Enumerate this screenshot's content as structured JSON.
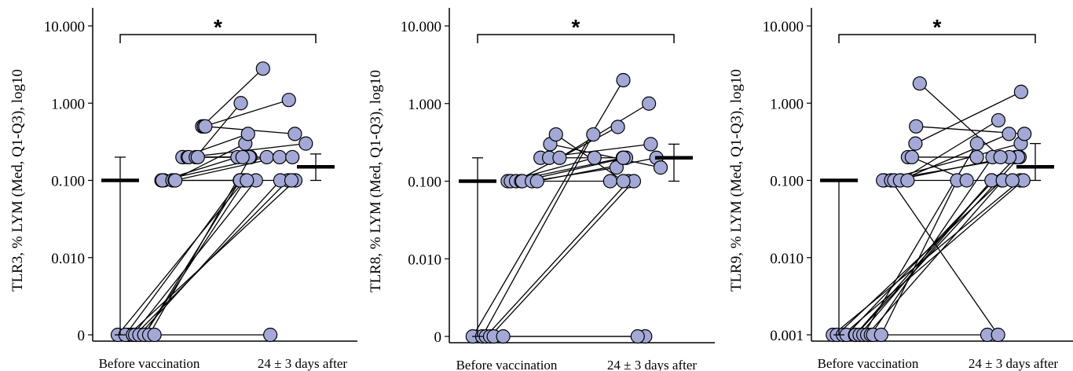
{
  "chart_data": [
    {
      "type": "scatter",
      "ylabel": "TLR3, % LYM (Med, Q1-Q3), log10",
      "categories": [
        "Before vaccination",
        "24 ± 3 days after"
      ],
      "yscale": "log",
      "ylim": [
        0.001,
        10
      ],
      "ytick_values": [
        0.001,
        0.01,
        0.1,
        1,
        10
      ],
      "ytick_labels": [
        "0",
        "0.010",
        "0.100",
        "1.000",
        "10.000"
      ],
      "significance": "*",
      "summary": [
        {
          "median": 0.1,
          "q1": 0.001,
          "q3": 0.2
        },
        {
          "median": 0.15,
          "q1": 0.1,
          "q3": 0.22
        }
      ],
      "pairs": [
        [
          0.001,
          0.1
        ],
        [
          0.001,
          0.1
        ],
        [
          0.001,
          0.1
        ],
        [
          0.001,
          0.1
        ],
        [
          0.001,
          0.1
        ],
        [
          0.001,
          0.1
        ],
        [
          0.001,
          0.1
        ],
        [
          0.001,
          0.1
        ],
        [
          0.001,
          0.2
        ],
        [
          0.001,
          0.001
        ],
        [
          0.1,
          0.2
        ],
        [
          0.1,
          0.1
        ],
        [
          0.1,
          0.2
        ],
        [
          0.1,
          0.3
        ],
        [
          0.1,
          0.2
        ],
        [
          0.1,
          0.1
        ],
        [
          0.2,
          0.2
        ],
        [
          0.2,
          0.4
        ],
        [
          0.2,
          0.2
        ],
        [
          0.2,
          0.3
        ],
        [
          0.2,
          1.0
        ],
        [
          0.2,
          0.2
        ],
        [
          0.5,
          2.8
        ],
        [
          0.5,
          1.1
        ],
        [
          0.5,
          0.4
        ]
      ]
    },
    {
      "type": "scatter",
      "ylabel": "TLR8, % LYM (Med, Q1-Q3), log10",
      "categories": [
        "Before vaccination",
        "24 ± 3 days after"
      ],
      "yscale": "log",
      "ylim": [
        0.001,
        10
      ],
      "ytick_values": [
        0.001,
        0.01,
        0.1,
        1,
        10
      ],
      "ytick_labels": [
        "0",
        "0.010",
        "0.100",
        "1.000",
        "10.000"
      ],
      "significance": "*",
      "summary": [
        {
          "median": 0.1,
          "q1": 0.001,
          "q3": 0.2
        },
        {
          "median": 0.2,
          "q1": 0.1,
          "q3": 0.3
        }
      ],
      "pairs": [
        [
          0.001,
          2.0
        ],
        [
          0.001,
          0.4
        ],
        [
          0.001,
          0.1
        ],
        [
          0.001,
          0.1
        ],
        [
          0.001,
          0.001
        ],
        [
          0.001,
          0.001
        ],
        [
          0.1,
          0.2
        ],
        [
          0.1,
          0.2
        ],
        [
          0.1,
          0.5
        ],
        [
          0.1,
          0.1
        ],
        [
          0.1,
          0.2
        ],
        [
          0.1,
          0.15
        ],
        [
          0.1,
          0.2
        ],
        [
          0.2,
          0.3
        ],
        [
          0.2,
          0.2
        ],
        [
          0.3,
          0.15
        ],
        [
          0.4,
          0.1
        ],
        [
          0.2,
          1.0
        ]
      ]
    },
    {
      "type": "scatter",
      "ylabel": "TLR9, % LYM (Med, Q1-Q3), log10",
      "categories": [
        "Before vaccination",
        "24 ± 3 days after"
      ],
      "yscale": "log",
      "ylim": [
        0.001,
        10
      ],
      "ytick_values": [
        0.001,
        0.01,
        0.1,
        1,
        10
      ],
      "ytick_labels": [
        "0.001",
        "0.010",
        "0.100",
        "1.000",
        "10.000"
      ],
      "significance": "*",
      "summary": [
        {
          "median": 0.1,
          "q1": 0.001,
          "q3": 0.1
        },
        {
          "median": 0.15,
          "q1": 0.1,
          "q3": 0.3
        }
      ],
      "pairs": [
        [
          0.001,
          0.1
        ],
        [
          0.001,
          0.1
        ],
        [
          0.001,
          0.1
        ],
        [
          0.001,
          0.2
        ],
        [
          0.001,
          0.1
        ],
        [
          0.001,
          0.2
        ],
        [
          0.001,
          0.1
        ],
        [
          0.001,
          0.3
        ],
        [
          0.001,
          0.1
        ],
        [
          0.001,
          0.2
        ],
        [
          0.001,
          0.001
        ],
        [
          0.001,
          0.1
        ],
        [
          0.1,
          0.2
        ],
        [
          0.1,
          0.3
        ],
        [
          0.1,
          0.001
        ],
        [
          0.1,
          0.2
        ],
        [
          0.1,
          0.6
        ],
        [
          0.1,
          0.4
        ],
        [
          0.1,
          0.1
        ],
        [
          0.2,
          0.2
        ],
        [
          0.2,
          0.1
        ],
        [
          0.3,
          1.4
        ],
        [
          0.5,
          0.4
        ],
        [
          1.8,
          0.2
        ]
      ]
    }
  ]
}
